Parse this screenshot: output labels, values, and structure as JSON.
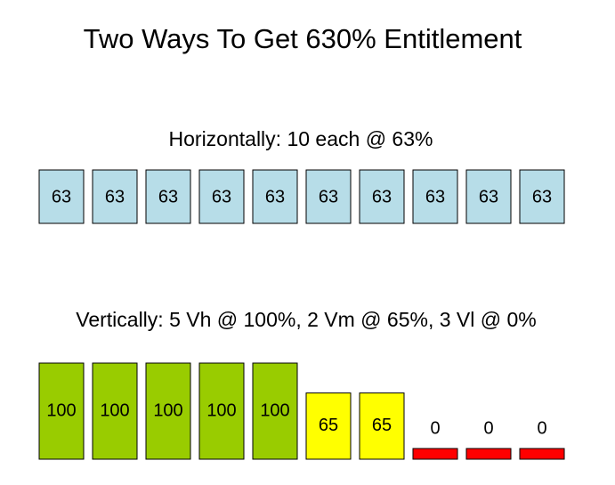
{
  "title": "Two Ways To Get 630% Entitlement",
  "horizontal": {
    "heading": "Horizontally:  10 each @ 63%",
    "color": "#b7dde8",
    "boxes": [
      63,
      63,
      63,
      63,
      63,
      63,
      63,
      63,
      63,
      63
    ]
  },
  "vertical": {
    "heading": "Vertically:  5 Vh @ 100%, 2 Vm @ 65%, 3 Vl @ 0%",
    "boxes": [
      {
        "value": 100,
        "color": "#99cc00"
      },
      {
        "value": 100,
        "color": "#99cc00"
      },
      {
        "value": 100,
        "color": "#99cc00"
      },
      {
        "value": 100,
        "color": "#99cc00"
      },
      {
        "value": 100,
        "color": "#99cc00"
      },
      {
        "value": 65,
        "color": "#ffff00"
      },
      {
        "value": 65,
        "color": "#ffff00"
      },
      {
        "value": 0,
        "color": "#ff0000"
      },
      {
        "value": 0,
        "color": "#ff0000"
      },
      {
        "value": 0,
        "color": "#ff0000"
      }
    ]
  }
}
